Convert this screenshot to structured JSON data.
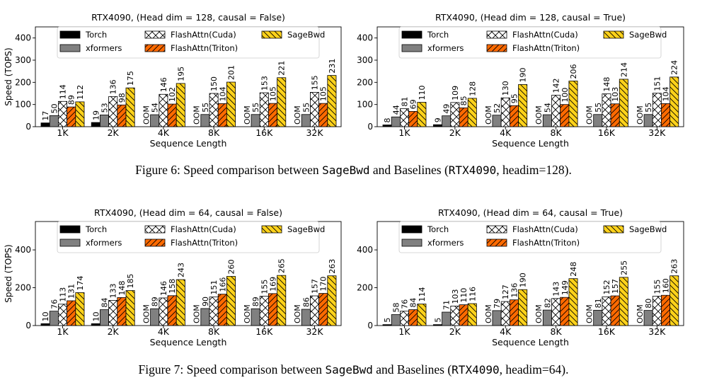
{
  "series_colors": {
    "Torch": "#000000",
    "xformers": "#808080",
    "FlashAttn(Cuda)": "#ffffff",
    "FlashAttn(Triton)": "#ff6a00",
    "SageBwd": "#ffd21a"
  },
  "oom_label": "OOM",
  "captions": [
    {
      "prefix": "Figure 6: Speed comparison between ",
      "code1": "SageBwd",
      "mid": " and Baselines (",
      "code2": "RTX4090",
      "suffix": ", headim=128)."
    },
    {
      "prefix": "Figure 7: Speed comparison between ",
      "code1": "SageBwd",
      "mid": " and Baselines (",
      "code2": "RTX4090",
      "suffix": ", headim=64)."
    }
  ],
  "chart_data": [
    {
      "type": "bar",
      "title": "RTX4090, (Head dim = 128, causal = False)",
      "xlabel": "Sequence Length",
      "ylabel": "Speed (TOPS)",
      "ylim": [
        0,
        450
      ],
      "yticks": [
        0,
        100,
        200,
        300,
        400
      ],
      "categories": [
        "1K",
        "2K",
        "4K",
        "8K",
        "16K",
        "32K"
      ],
      "series": [
        {
          "name": "Torch",
          "values": [
            17,
            19,
            null,
            null,
            null,
            null
          ]
        },
        {
          "name": "xformers",
          "values": [
            50,
            53,
            54,
            55,
            55,
            55
          ]
        },
        {
          "name": "FlashAttn(Cuda)",
          "values": [
            114,
            136,
            146,
            150,
            153,
            155
          ]
        },
        {
          "name": "FlashAttn(Triton)",
          "values": [
            89,
            98,
            102,
            104,
            105,
            105
          ]
        },
        {
          "name": "SageBwd",
          "values": [
            112,
            175,
            195,
            201,
            221,
            231
          ]
        }
      ]
    },
    {
      "type": "bar",
      "title": "RTX4090, (Head dim = 128, causal = True)",
      "xlabel": "Sequence Length",
      "ylabel": "",
      "ylim": [
        0,
        450
      ],
      "yticks": [
        0,
        100,
        200,
        300,
        400
      ],
      "categories": [
        "1K",
        "2K",
        "4K",
        "8K",
        "16K",
        "32K"
      ],
      "series": [
        {
          "name": "Torch",
          "values": [
            8,
            9,
            null,
            null,
            null,
            null
          ]
        },
        {
          "name": "xformers",
          "values": [
            44,
            49,
            52,
            54,
            55,
            55
          ]
        },
        {
          "name": "FlashAttn(Cuda)",
          "values": [
            81,
            109,
            130,
            142,
            148,
            151
          ]
        },
        {
          "name": "FlashAttn(Triton)",
          "values": [
            69,
            85,
            95,
            100,
            103,
            104
          ]
        },
        {
          "name": "SageBwd",
          "values": [
            110,
            128,
            190,
            206,
            214,
            224
          ]
        }
      ]
    },
    {
      "type": "bar",
      "title": "RTX4090, (Head dim = 64, causal = False)",
      "xlabel": "Sequence Length",
      "ylabel": "Speed (TOPS)",
      "ylim": [
        0,
        550
      ],
      "yticks": [
        0,
        200,
        400
      ],
      "categories": [
        "1K",
        "2K",
        "4K",
        "8K",
        "16K",
        "32K"
      ],
      "series": [
        {
          "name": "Torch",
          "values": [
            10,
            10,
            null,
            null,
            null,
            null
          ]
        },
        {
          "name": "xformers",
          "values": [
            76,
            84,
            89,
            90,
            89,
            86
          ]
        },
        {
          "name": "FlashAttn(Cuda)",
          "values": [
            113,
            133,
            146,
            151,
            155,
            157
          ]
        },
        {
          "name": "FlashAttn(Triton)",
          "values": [
            131,
            148,
            158,
            166,
            169,
            170
          ]
        },
        {
          "name": "SageBwd",
          "values": [
            174,
            185,
            243,
            260,
            265,
            263
          ]
        }
      ]
    },
    {
      "type": "bar",
      "title": "RTX4090, (Head dim = 64, causal = True)",
      "xlabel": "Sequence Length",
      "ylabel": "",
      "ylim": [
        0,
        550
      ],
      "yticks": [
        0,
        200,
        400
      ],
      "categories": [
        "1K",
        "2K",
        "4K",
        "8K",
        "16K",
        "32K"
      ],
      "series": [
        {
          "name": "Torch",
          "values": [
            5,
            5,
            null,
            null,
            null,
            null
          ]
        },
        {
          "name": "xformers",
          "values": [
            58,
            71,
            79,
            82,
            81,
            80
          ]
        },
        {
          "name": "FlashAttn(Cuda)",
          "values": [
            76,
            103,
            127,
            143,
            152,
            155
          ]
        },
        {
          "name": "FlashAttn(Triton)",
          "values": [
            84,
            110,
            136,
            149,
            157,
            160
          ]
        },
        {
          "name": "SageBwd",
          "values": [
            114,
            116,
            190,
            248,
            255,
            263
          ]
        }
      ]
    }
  ]
}
